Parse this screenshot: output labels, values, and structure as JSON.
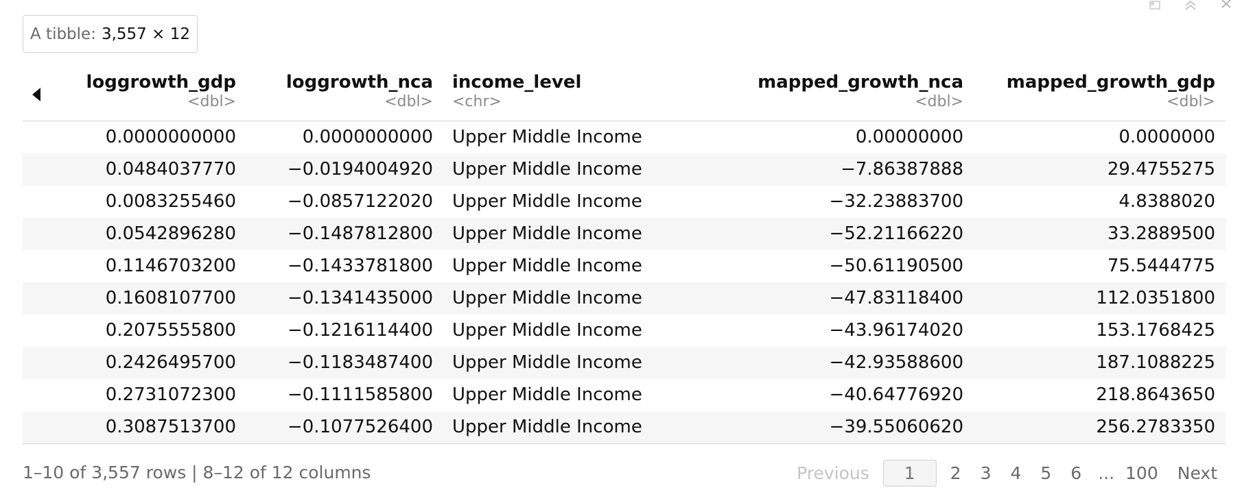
{
  "badge": {
    "label": "A tibble:",
    "dims": "3,557 × 12"
  },
  "columns": [
    {
      "name": "loggrowth_gdp",
      "type": "<dbl>"
    },
    {
      "name": "loggrowth_nca",
      "type": "<dbl>"
    },
    {
      "name": "income_level",
      "type": "<chr>"
    },
    {
      "name": "mapped_growth_nca",
      "type": "<dbl>"
    },
    {
      "name": "mapped_growth_gdp",
      "type": "<dbl>"
    }
  ],
  "rows": [
    [
      "0.0000000000",
      "0.0000000000",
      "Upper Middle Income",
      "0.00000000",
      "0.0000000"
    ],
    [
      "0.0484037770",
      "−0.0194004920",
      "Upper Middle Income",
      "−7.86387888",
      "29.4755275"
    ],
    [
      "0.0083255460",
      "−0.0857122020",
      "Upper Middle Income",
      "−32.23883700",
      "4.8388020"
    ],
    [
      "0.0542896280",
      "−0.1487812800",
      "Upper Middle Income",
      "−52.21166220",
      "33.2889500"
    ],
    [
      "0.1146703200",
      "−0.1433781800",
      "Upper Middle Income",
      "−50.61190500",
      "75.5444775"
    ],
    [
      "0.1608107700",
      "−0.1341435000",
      "Upper Middle Income",
      "−47.83118400",
      "112.0351800"
    ],
    [
      "0.2075555800",
      "−0.1216114400",
      "Upper Middle Income",
      "−43.96174020",
      "153.1768425"
    ],
    [
      "0.2426495700",
      "−0.1183487400",
      "Upper Middle Income",
      "−42.93588600",
      "187.1088225"
    ],
    [
      "0.2731072300",
      "−0.1111585800",
      "Upper Middle Income",
      "−40.64776920",
      "218.8643650"
    ],
    [
      "0.3087513700",
      "−0.1077526400",
      "Upper Middle Income",
      "−39.55060620",
      "256.2783350"
    ]
  ],
  "footer": {
    "summary": "1–10 of 3,557 rows | 8–12 of 12 columns",
    "previous": "Previous",
    "pages": [
      "1",
      "2",
      "3",
      "4",
      "5",
      "6"
    ],
    "ellipsis": "...",
    "last_page": "100",
    "next": "Next"
  },
  "icons": {
    "prev_columns": "caret-left-icon",
    "window": [
      "popout-icon",
      "collapse-icon",
      "close-icon"
    ]
  },
  "colors": {
    "border": "#d2d2d2",
    "stripe": "#f6f6f6",
    "muted": "#8a8a8a"
  }
}
